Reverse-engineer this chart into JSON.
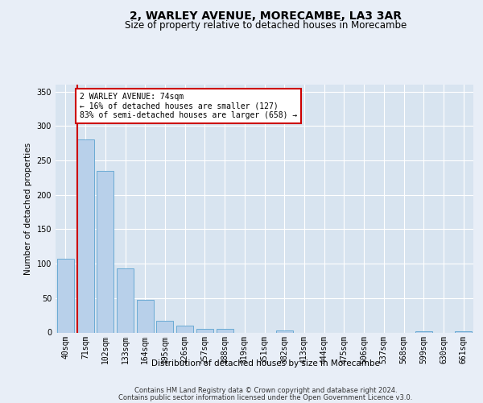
{
  "title": "2, WARLEY AVENUE, MORECAMBE, LA3 3AR",
  "subtitle": "Size of property relative to detached houses in Morecambe",
  "xlabel": "Distribution of detached houses by size in Morecambe",
  "ylabel": "Number of detached properties",
  "categories": [
    "40sqm",
    "71sqm",
    "102sqm",
    "133sqm",
    "164sqm",
    "195sqm",
    "226sqm",
    "257sqm",
    "288sqm",
    "319sqm",
    "351sqm",
    "382sqm",
    "413sqm",
    "444sqm",
    "475sqm",
    "506sqm",
    "537sqm",
    "568sqm",
    "599sqm",
    "630sqm",
    "661sqm"
  ],
  "values": [
    107,
    280,
    235,
    93,
    48,
    17,
    10,
    5,
    5,
    0,
    0,
    3,
    0,
    0,
    0,
    0,
    0,
    0,
    2,
    0,
    2
  ],
  "bar_color": "#b8d0ea",
  "bar_edge_color": "#6aaad4",
  "highlight_bar_index": 1,
  "highlight_line_color": "#cc0000",
  "ylim": [
    0,
    360
  ],
  "yticks": [
    0,
    50,
    100,
    150,
    200,
    250,
    300,
    350
  ],
  "annotation_text": "2 WARLEY AVENUE: 74sqm\n← 16% of detached houses are smaller (127)\n83% of semi-detached houses are larger (658) →",
  "annotation_box_color": "#ffffff",
  "annotation_box_edge_color": "#cc0000",
  "footer_line1": "Contains HM Land Registry data © Crown copyright and database right 2024.",
  "footer_line2": "Contains public sector information licensed under the Open Government Licence v3.0.",
  "background_color": "#e8eef7",
  "plot_background_color": "#d8e4f0",
  "title_fontsize": 10,
  "subtitle_fontsize": 8.5,
  "axis_label_fontsize": 7.5,
  "tick_fontsize": 7,
  "footer_fontsize": 6,
  "annotation_fontsize": 7
}
